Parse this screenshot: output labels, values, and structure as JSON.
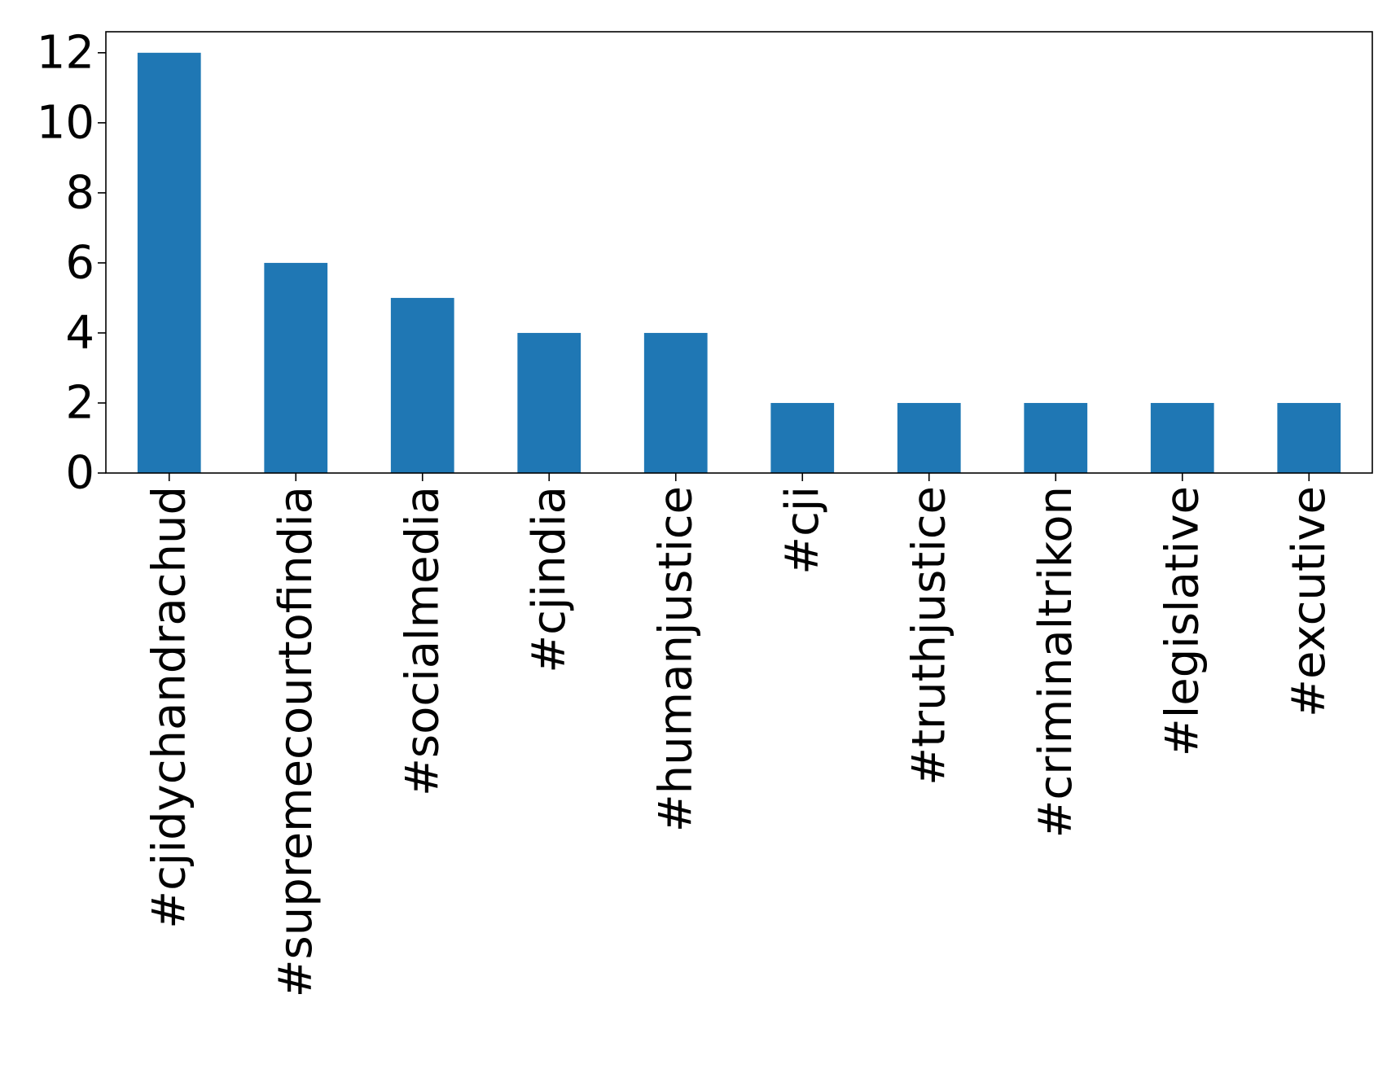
{
  "colors": {
    "bar": "#1f77b4",
    "axis": "#000000",
    "background": "#ffffff"
  },
  "chart_data": {
    "type": "bar",
    "title": "",
    "xlabel": "",
    "ylabel": "",
    "categories": [
      "#cjidychandrachud",
      "#supremecourtofindia",
      "#socialmedia",
      "#cjindia",
      "#humanjustice",
      "#cji",
      "#truthjustice",
      "#criminaltrikon",
      "#legislative",
      "#excutive"
    ],
    "values": [
      12,
      6,
      5,
      4,
      4,
      2,
      2,
      2,
      2,
      2
    ],
    "ylim": [
      0,
      12.6
    ],
    "yticks": [
      0,
      2,
      4,
      6,
      8,
      10,
      12
    ],
    "grid": false,
    "legend": "none"
  }
}
